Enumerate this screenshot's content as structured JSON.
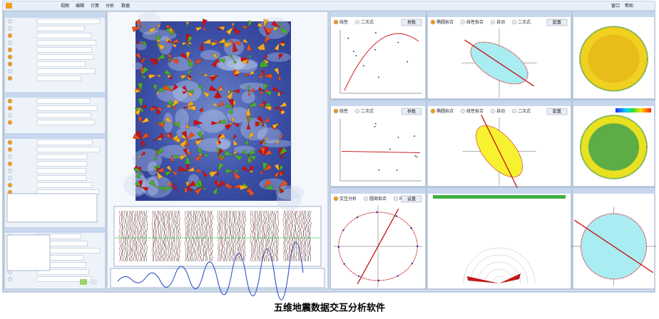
{
  "menu": {
    "items": [
      "视图",
      "编辑",
      "计算",
      "分析",
      "数据"
    ],
    "right": [
      "窗口",
      "帮助"
    ]
  },
  "panels": [
    {
      "options": [
        "线性",
        "二次式"
      ],
      "button": "参数"
    },
    {
      "options": [
        "椭圆拟合",
        "线性拟合",
        "自动",
        "二次式"
      ],
      "button": "配置"
    },
    {
      "options": [
        "线性",
        "二次式"
      ],
      "button": "参数"
    },
    {
      "options": [
        "椭圆拟合",
        "线性拟合",
        "自动",
        "二次式"
      ],
      "button": "配置"
    },
    {
      "options": [
        "交互分析",
        "圆周拟合",
        "时间拟合"
      ],
      "button": "设置"
    }
  ],
  "caption": "五维地震数据交互分析软件"
}
